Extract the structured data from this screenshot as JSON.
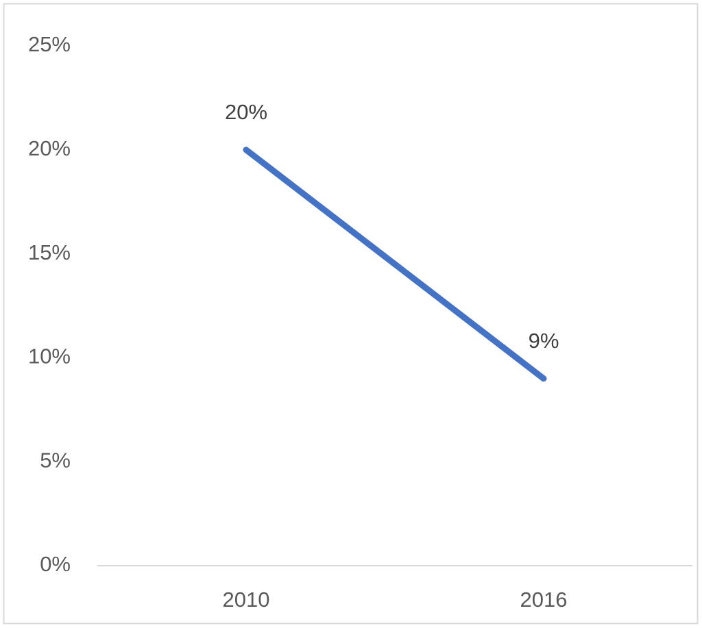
{
  "chart_data": {
    "type": "line",
    "categories": [
      "2010",
      "2016"
    ],
    "values": [
      20,
      9
    ],
    "value_labels": [
      "20%",
      "9%"
    ],
    "color": "#4472c4",
    "ylim": [
      0,
      25
    ],
    "yticks": [
      {
        "value": 0,
        "label": "0%"
      },
      {
        "value": 5,
        "label": "5%"
      },
      {
        "value": 10,
        "label": "10%"
      },
      {
        "value": 15,
        "label": "15%"
      },
      {
        "value": 20,
        "label": "20%"
      },
      {
        "value": 25,
        "label": "25%"
      }
    ],
    "grid": false
  }
}
